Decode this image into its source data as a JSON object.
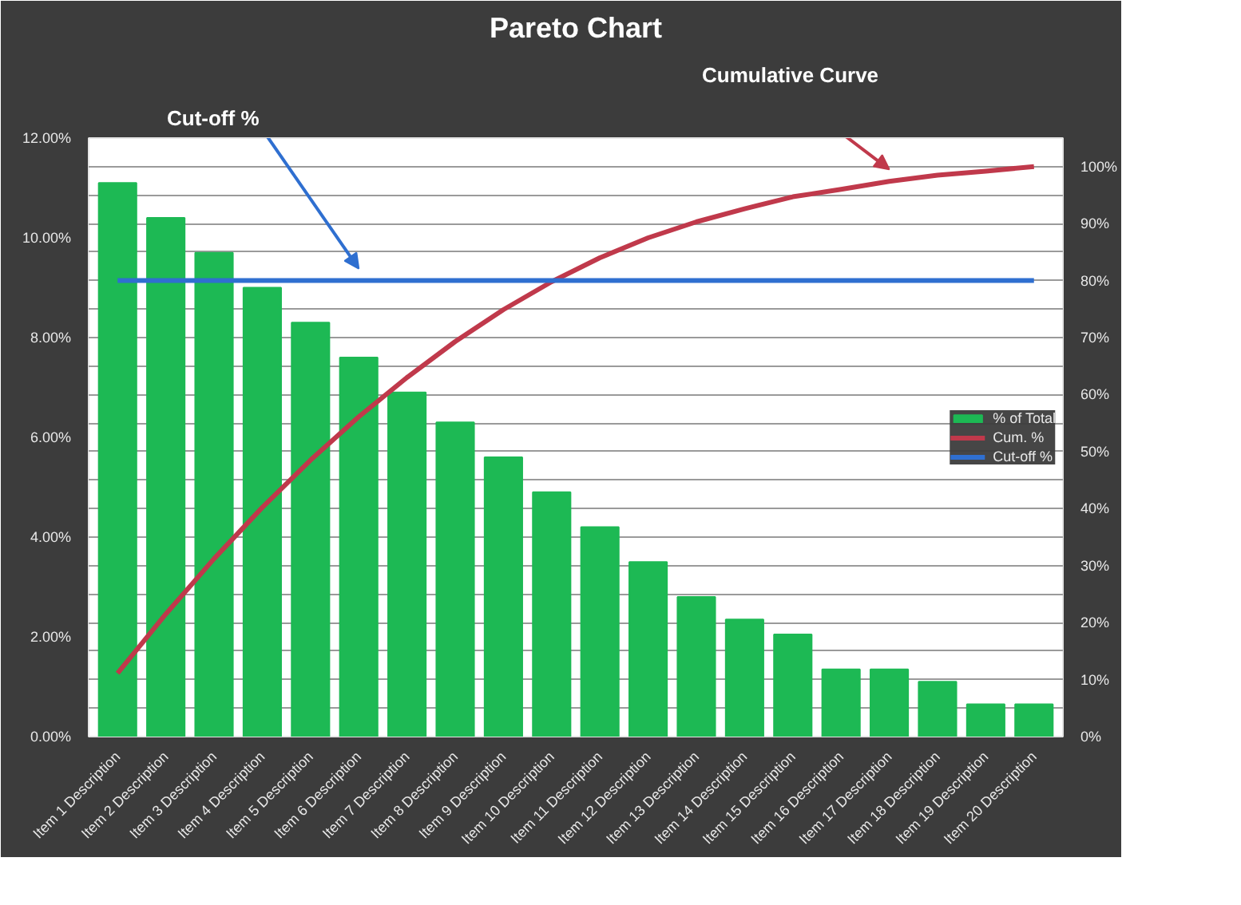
{
  "chart_data": {
    "type": "bar",
    "title": "Pareto Chart",
    "categories": [
      "Item 1 Description",
      "Item 2 Description",
      "Item 3 Description",
      "Item 4 Description",
      "Item 5 Description",
      "Item 6 Description",
      "Item 7 Description",
      "Item 8 Description",
      "Item 9 Description",
      "Item 10 Description",
      "Item 11 Description",
      "Item 12 Description",
      "Item 13 Description",
      "Item 14 Description",
      "Item 15 Description",
      "Item 16 Description",
      "Item 17 Description",
      "Item 18 Description",
      "Item 19 Description",
      "Item 20 Description"
    ],
    "series": [
      {
        "name": "% of Total",
        "color": "#1db954",
        "values": [
          11.1,
          10.4,
          9.7,
          9.0,
          8.3,
          7.6,
          6.9,
          6.3,
          5.6,
          4.9,
          4.2,
          3.5,
          2.8,
          2.35,
          2.05,
          1.35,
          1.35,
          1.1,
          0.65,
          0.65
        ]
      },
      {
        "name": "Cum. %",
        "type": "line",
        "axis": "y2",
        "color": "#c0394b",
        "values": [
          11.1,
          21.5,
          31.2,
          40.2,
          48.5,
          56.1,
          63.0,
          69.3,
          74.9,
          79.8,
          84.0,
          87.5,
          90.3,
          92.6,
          94.7,
          96.0,
          97.4,
          98.5,
          99.2,
          100
        ]
      },
      {
        "name": "Cut-off %",
        "type": "line",
        "axis": "y2",
        "color": "#2f6fd0",
        "values": [
          80,
          80,
          80,
          80,
          80,
          80,
          80,
          80,
          80,
          80,
          80,
          80,
          80,
          80,
          80,
          80,
          80,
          80,
          80,
          80
        ]
      }
    ],
    "ylim": [
      0,
      12
    ],
    "yticks": [
      {
        "value": 0,
        "label": "0.00%"
      },
      {
        "value": 2,
        "label": "2.00%"
      },
      {
        "value": 4,
        "label": "4.00%"
      },
      {
        "value": 6,
        "label": "6.00%"
      },
      {
        "value": 8,
        "label": "8.00%"
      },
      {
        "value": 10,
        "label": "10.00%"
      },
      {
        "value": 12,
        "label": "12.00%"
      }
    ],
    "y2lim": [
      0,
      105
    ],
    "y2ticks": [
      {
        "value": 0,
        "label": "0%"
      },
      {
        "value": 5,
        "label": null
      },
      {
        "value": 10,
        "label": "10%"
      },
      {
        "value": 15,
        "label": null
      },
      {
        "value": 20,
        "label": "20%"
      },
      {
        "value": 25,
        "label": null
      },
      {
        "value": 30,
        "label": "30%"
      },
      {
        "value": 35,
        "label": null
      },
      {
        "value": 40,
        "label": "40%"
      },
      {
        "value": 45,
        "label": null
      },
      {
        "value": 50,
        "label": "50%"
      },
      {
        "value": 55,
        "label": null
      },
      {
        "value": 60,
        "label": "60%"
      },
      {
        "value": 65,
        "label": null
      },
      {
        "value": 70,
        "label": "70%"
      },
      {
        "value": 75,
        "label": null
      },
      {
        "value": 80,
        "label": "80%"
      },
      {
        "value": 85,
        "label": null
      },
      {
        "value": 90,
        "label": "90%"
      },
      {
        "value": 95,
        "label": null
      },
      {
        "value": 100,
        "label": "100%"
      },
      {
        "value": 105,
        "label": null
      }
    ],
    "grid": "y",
    "legend": "right",
    "annotations": [
      "Cut-off %",
      "Cumulative Curve"
    ]
  }
}
